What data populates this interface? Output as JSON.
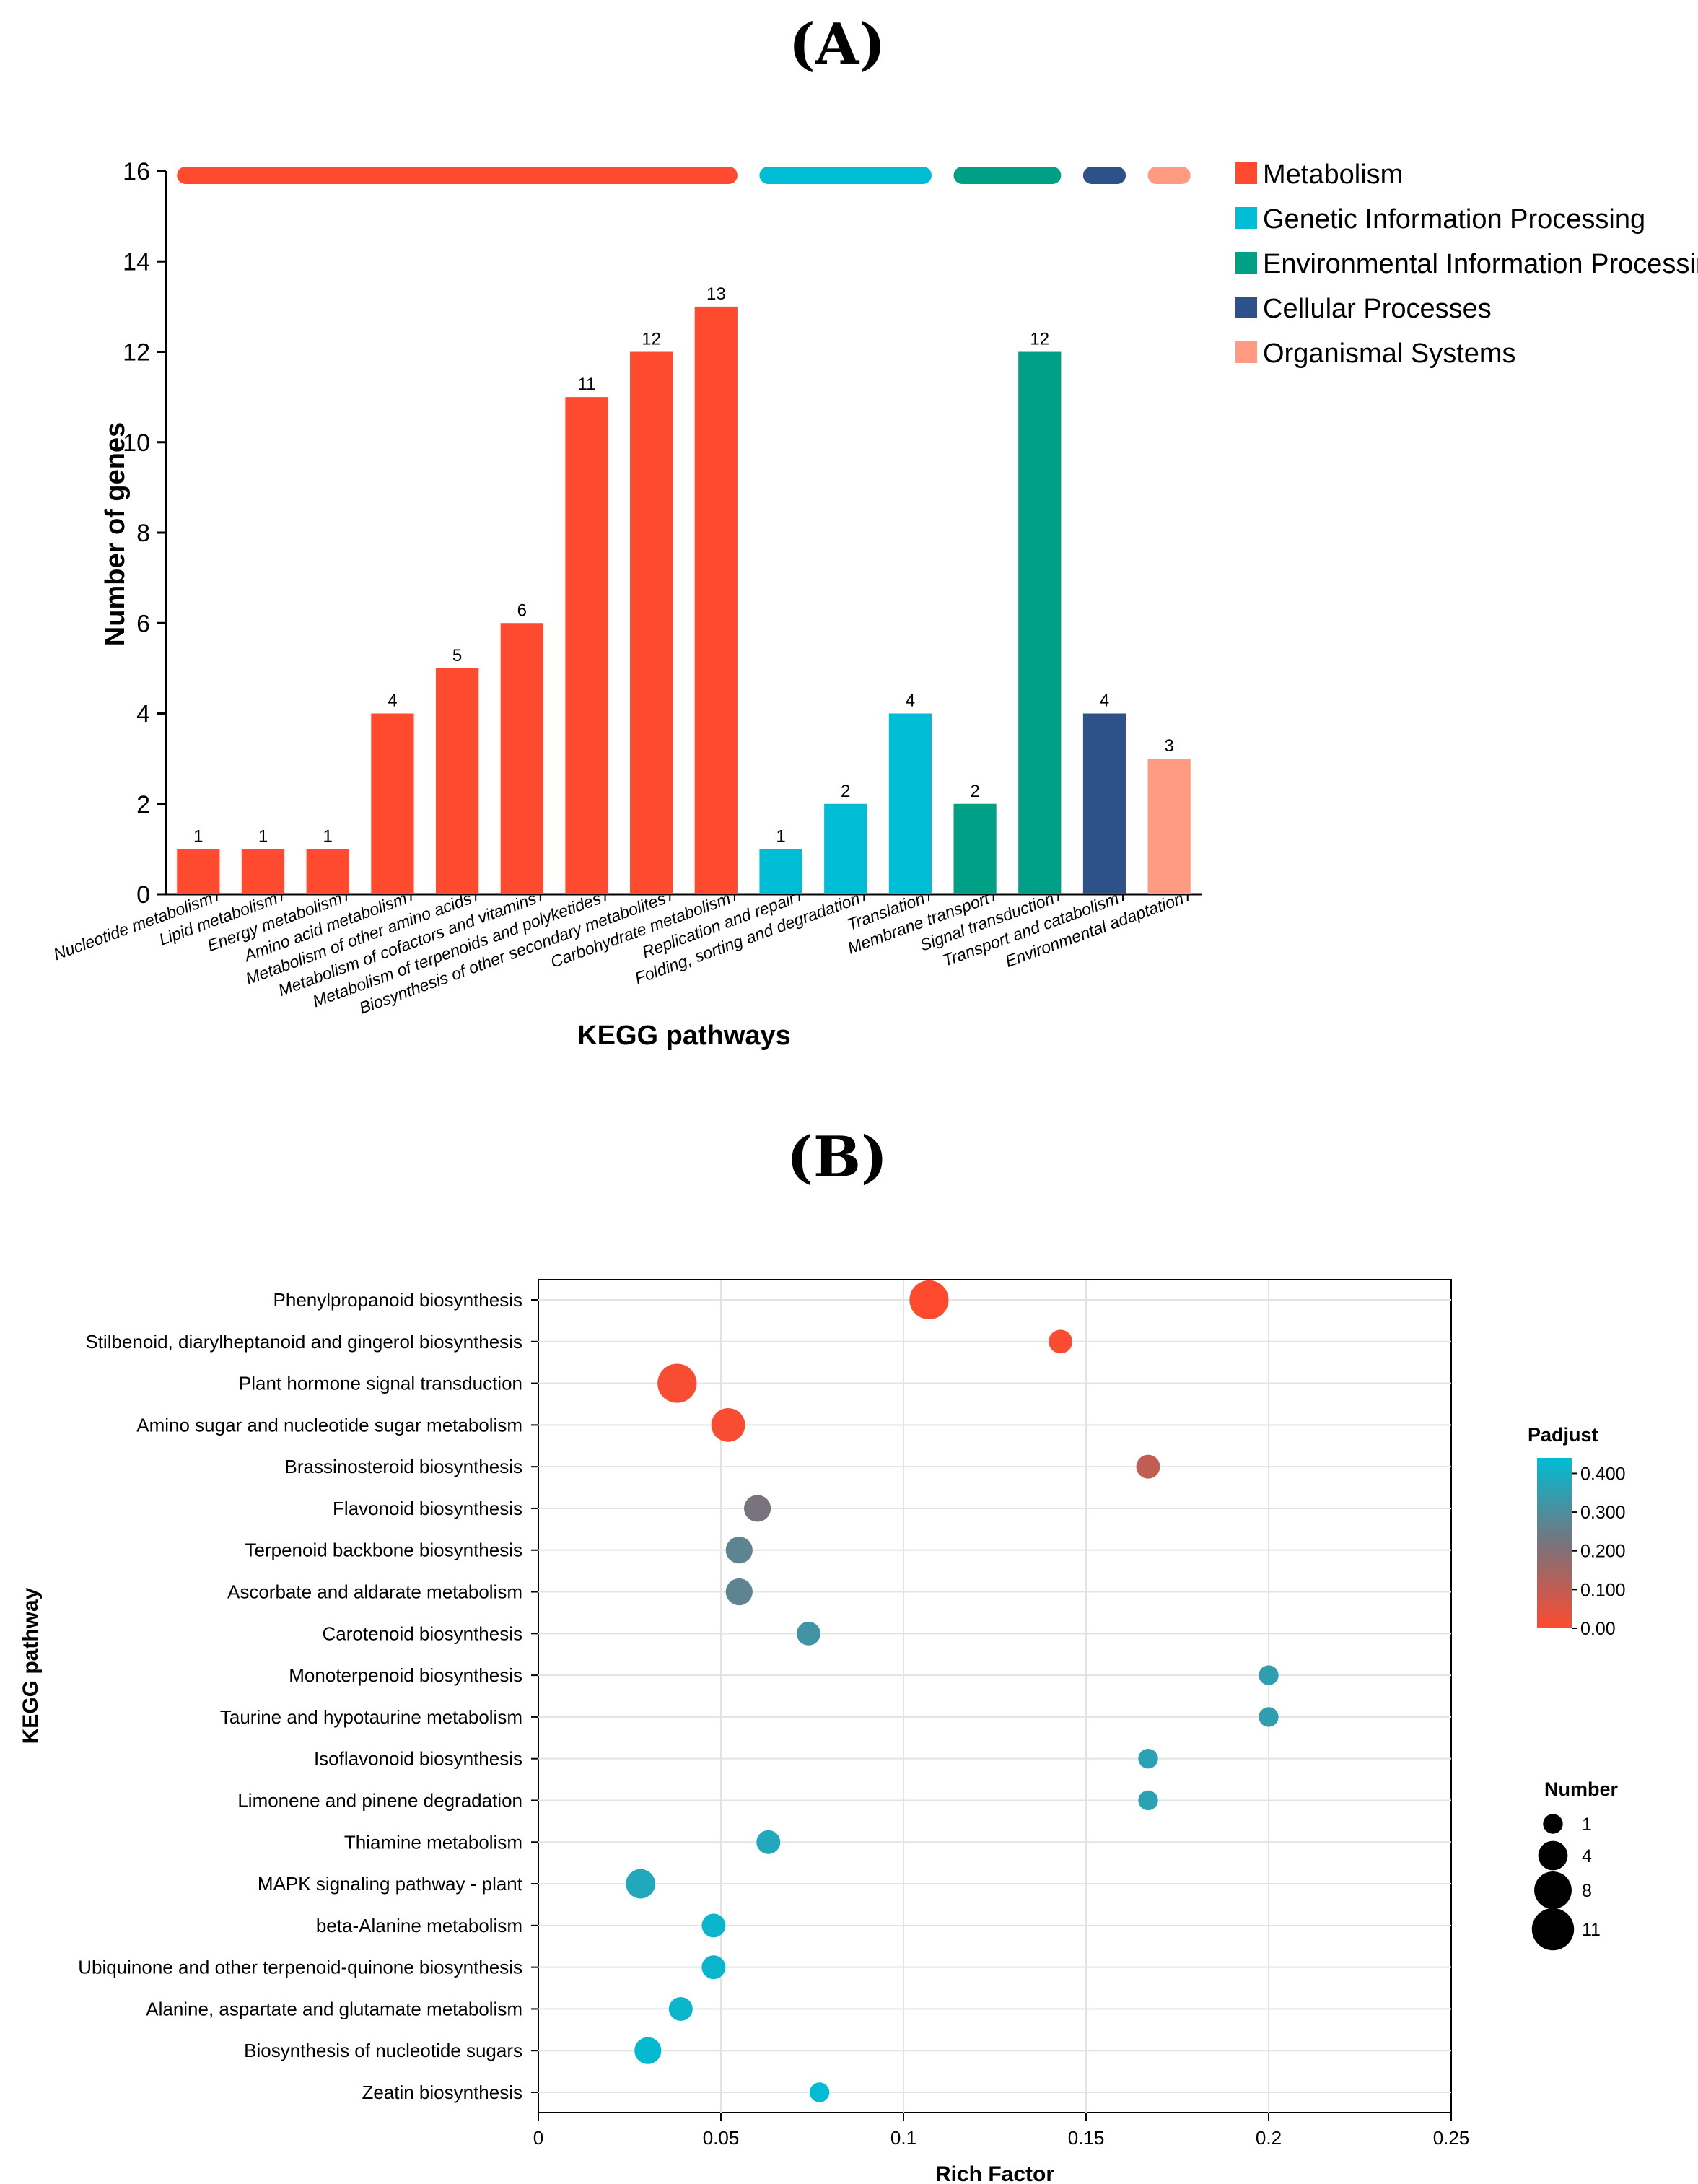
{
  "panel_a_label": "(A)",
  "panel_b_label": "(B)",
  "chart_data": [
    {
      "type": "bar",
      "categories": [
        "Nucleotide metabolism",
        "Lipid metabolism",
        "Energy metabolism",
        "Amino acid metabolism",
        "Metabolism of other amino acids",
        "Metabolism of cofactors and vitamins",
        "Metabolism of terpenoids and polyketides",
        "Biosynthesis of other secondary metabolites",
        "Carbohydrate metabolism",
        "Replication and repair",
        "Folding, sorting and degradation",
        "Translation",
        "Membrane transport",
        "Signal transduction",
        "Transport and catabolism",
        "Environmental adaptation"
      ],
      "values": [
        1,
        1,
        1,
        4,
        5,
        6,
        11,
        12,
        13,
        1,
        2,
        4,
        2,
        12,
        4,
        3
      ],
      "groups": [
        0,
        0,
        0,
        0,
        0,
        0,
        0,
        0,
        0,
        1,
        1,
        1,
        2,
        2,
        3,
        4
      ],
      "group_names": [
        "Metabolism",
        "Genetic Information Processing",
        "Environmental Information Processing",
        "Cellular Processes",
        "Organismal Systems"
      ],
      "group_colors": [
        "#fe4a2f",
        "#00bcd4",
        "#00a086",
        "#2d5188",
        "#fe9b80"
      ],
      "xlabel": "KEGG pathways",
      "ylabel": "Number of genes",
      "ylim": [
        0,
        16
      ],
      "yticks": [
        0,
        2,
        4,
        6,
        8,
        10,
        12,
        14,
        16
      ],
      "legend_position": "top-right"
    },
    {
      "type": "scatter",
      "pathways": [
        "Phenylpropanoid biosynthesis",
        "Stilbenoid, diarylheptanoid and gingerol biosynthesis",
        "Plant hormone signal transduction",
        "Amino sugar and nucleotide sugar metabolism",
        "Brassinosteroid biosynthesis",
        "Flavonoid biosynthesis",
        "Terpenoid backbone biosynthesis",
        "Ascorbate and aldarate metabolism",
        "Carotenoid biosynthesis",
        "Monoterpenoid biosynthesis",
        "Taurine and hypotaurine metabolism",
        "Isoflavonoid biosynthesis",
        "Limonene and pinene degradation",
        "Thiamine metabolism",
        "MAPK signaling pathway - plant",
        "beta-Alanine metabolism",
        "Ubiquinone and other terpenoid-quinone biosynthesis",
        "Alanine, aspartate and glutamate metabolism",
        "Biosynthesis of nucleotide sugars",
        "Zeatin biosynthesis"
      ],
      "rich_factor": [
        0.107,
        0.143,
        0.038,
        0.052,
        0.167,
        0.06,
        0.055,
        0.055,
        0.074,
        0.2,
        0.2,
        0.167,
        0.167,
        0.063,
        0.028,
        0.048,
        0.048,
        0.039,
        0.03,
        0.077
      ],
      "number": [
        9,
        2,
        9,
        6,
        2,
        3,
        3,
        3,
        2,
        1,
        1,
        1,
        1,
        2,
        4,
        2,
        2,
        2,
        3,
        1
      ],
      "padjust": [
        0.0,
        0.01,
        0.01,
        0.01,
        0.1,
        0.22,
        0.27,
        0.27,
        0.32,
        0.35,
        0.35,
        0.36,
        0.36,
        0.38,
        0.38,
        0.42,
        0.42,
        0.42,
        0.43,
        0.44
      ],
      "xlabel": "Rich Factor",
      "ylabel": "KEGG pathway",
      "xlim": [
        0,
        0.25
      ],
      "xticks": [
        0,
        0.05,
        0.1,
        0.15,
        0.2,
        0.25
      ],
      "xtick_labels": [
        "0",
        "0.05",
        "0.1",
        "0.15",
        "0.2",
        "0.25"
      ],
      "color_legend": {
        "title": "Padjust",
        "ticks": [
          "0.400",
          "0.300",
          "0.200",
          "0.100",
          "0.00"
        ],
        "tick_values": [
          0.4,
          0.3,
          0.2,
          0.1,
          0.0
        ],
        "range": [
          0,
          0.44
        ],
        "colors": [
          "#fe4a2f",
          "#00bcd4"
        ]
      },
      "size_legend": {
        "title": "Number",
        "values": [
          1,
          4,
          8,
          11
        ]
      },
      "grid": true,
      "legend_position": "right"
    }
  ]
}
